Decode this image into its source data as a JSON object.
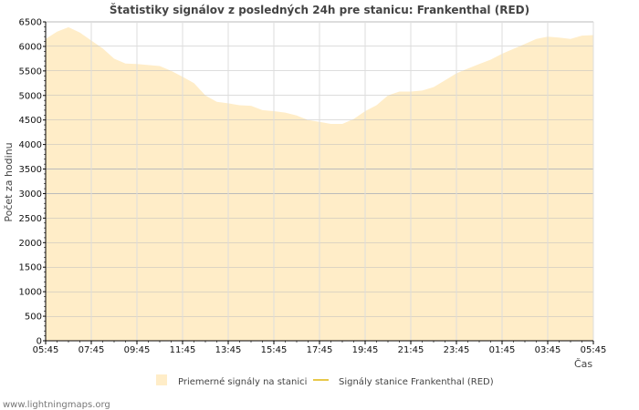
{
  "chart_data": {
    "type": "area",
    "title": "Štatistiky signálov z posledných 24h pre stanicu: Frankenthal (RED)",
    "xlabel": "Čas",
    "ylabel": "Počet za hodinu",
    "ylim": [
      0,
      6500
    ],
    "y_ticks": [
      0,
      500,
      1000,
      1500,
      2000,
      2500,
      3000,
      3500,
      4000,
      4500,
      5000,
      5500,
      6000,
      6500
    ],
    "x_tick_labels": [
      "05:45",
      "07:45",
      "09:45",
      "11:45",
      "13:45",
      "15:45",
      "17:45",
      "19:45",
      "21:45",
      "23:45",
      "01:45",
      "03:45",
      "05:45"
    ],
    "x_range_hours": [
      0,
      24
    ],
    "grid": true,
    "legend_position": "bottom",
    "series": [
      {
        "name": "Priemerné signály na stanici",
        "style": "area",
        "color": "#ffedc8",
        "x": [
          0,
          0.5,
          1,
          1.5,
          2,
          2.5,
          3,
          3.5,
          4,
          4.5,
          5,
          5.5,
          6,
          6.5,
          7,
          7.5,
          8,
          8.5,
          9,
          9.5,
          10,
          10.5,
          11,
          11.5,
          12,
          12.5,
          13,
          13.5,
          14,
          14.5,
          15,
          15.5,
          16,
          16.5,
          17,
          17.5,
          18,
          18.5,
          19,
          19.5,
          20,
          20.5,
          21,
          21.5,
          22,
          22.5,
          23,
          23.5,
          24
        ],
        "values": [
          6150,
          6300,
          6390,
          6280,
          6120,
          5960,
          5750,
          5650,
          5640,
          5620,
          5600,
          5500,
          5380,
          5250,
          5000,
          4870,
          4840,
          4800,
          4790,
          4700,
          4680,
          4650,
          4590,
          4500,
          4460,
          4420,
          4420,
          4520,
          4680,
          4800,
          5000,
          5080,
          5080,
          5100,
          5170,
          5310,
          5450,
          5550,
          5640,
          5730,
          5850,
          5950,
          6050,
          6150,
          6200,
          6180,
          6150,
          6220,
          6230
        ]
      },
      {
        "name": "Signály stanice Frankenthal (RED)",
        "style": "line",
        "color": "#e8c84a",
        "x": [],
        "values": []
      }
    ]
  },
  "footer": {
    "watermark": "www.lightningmaps.org"
  }
}
